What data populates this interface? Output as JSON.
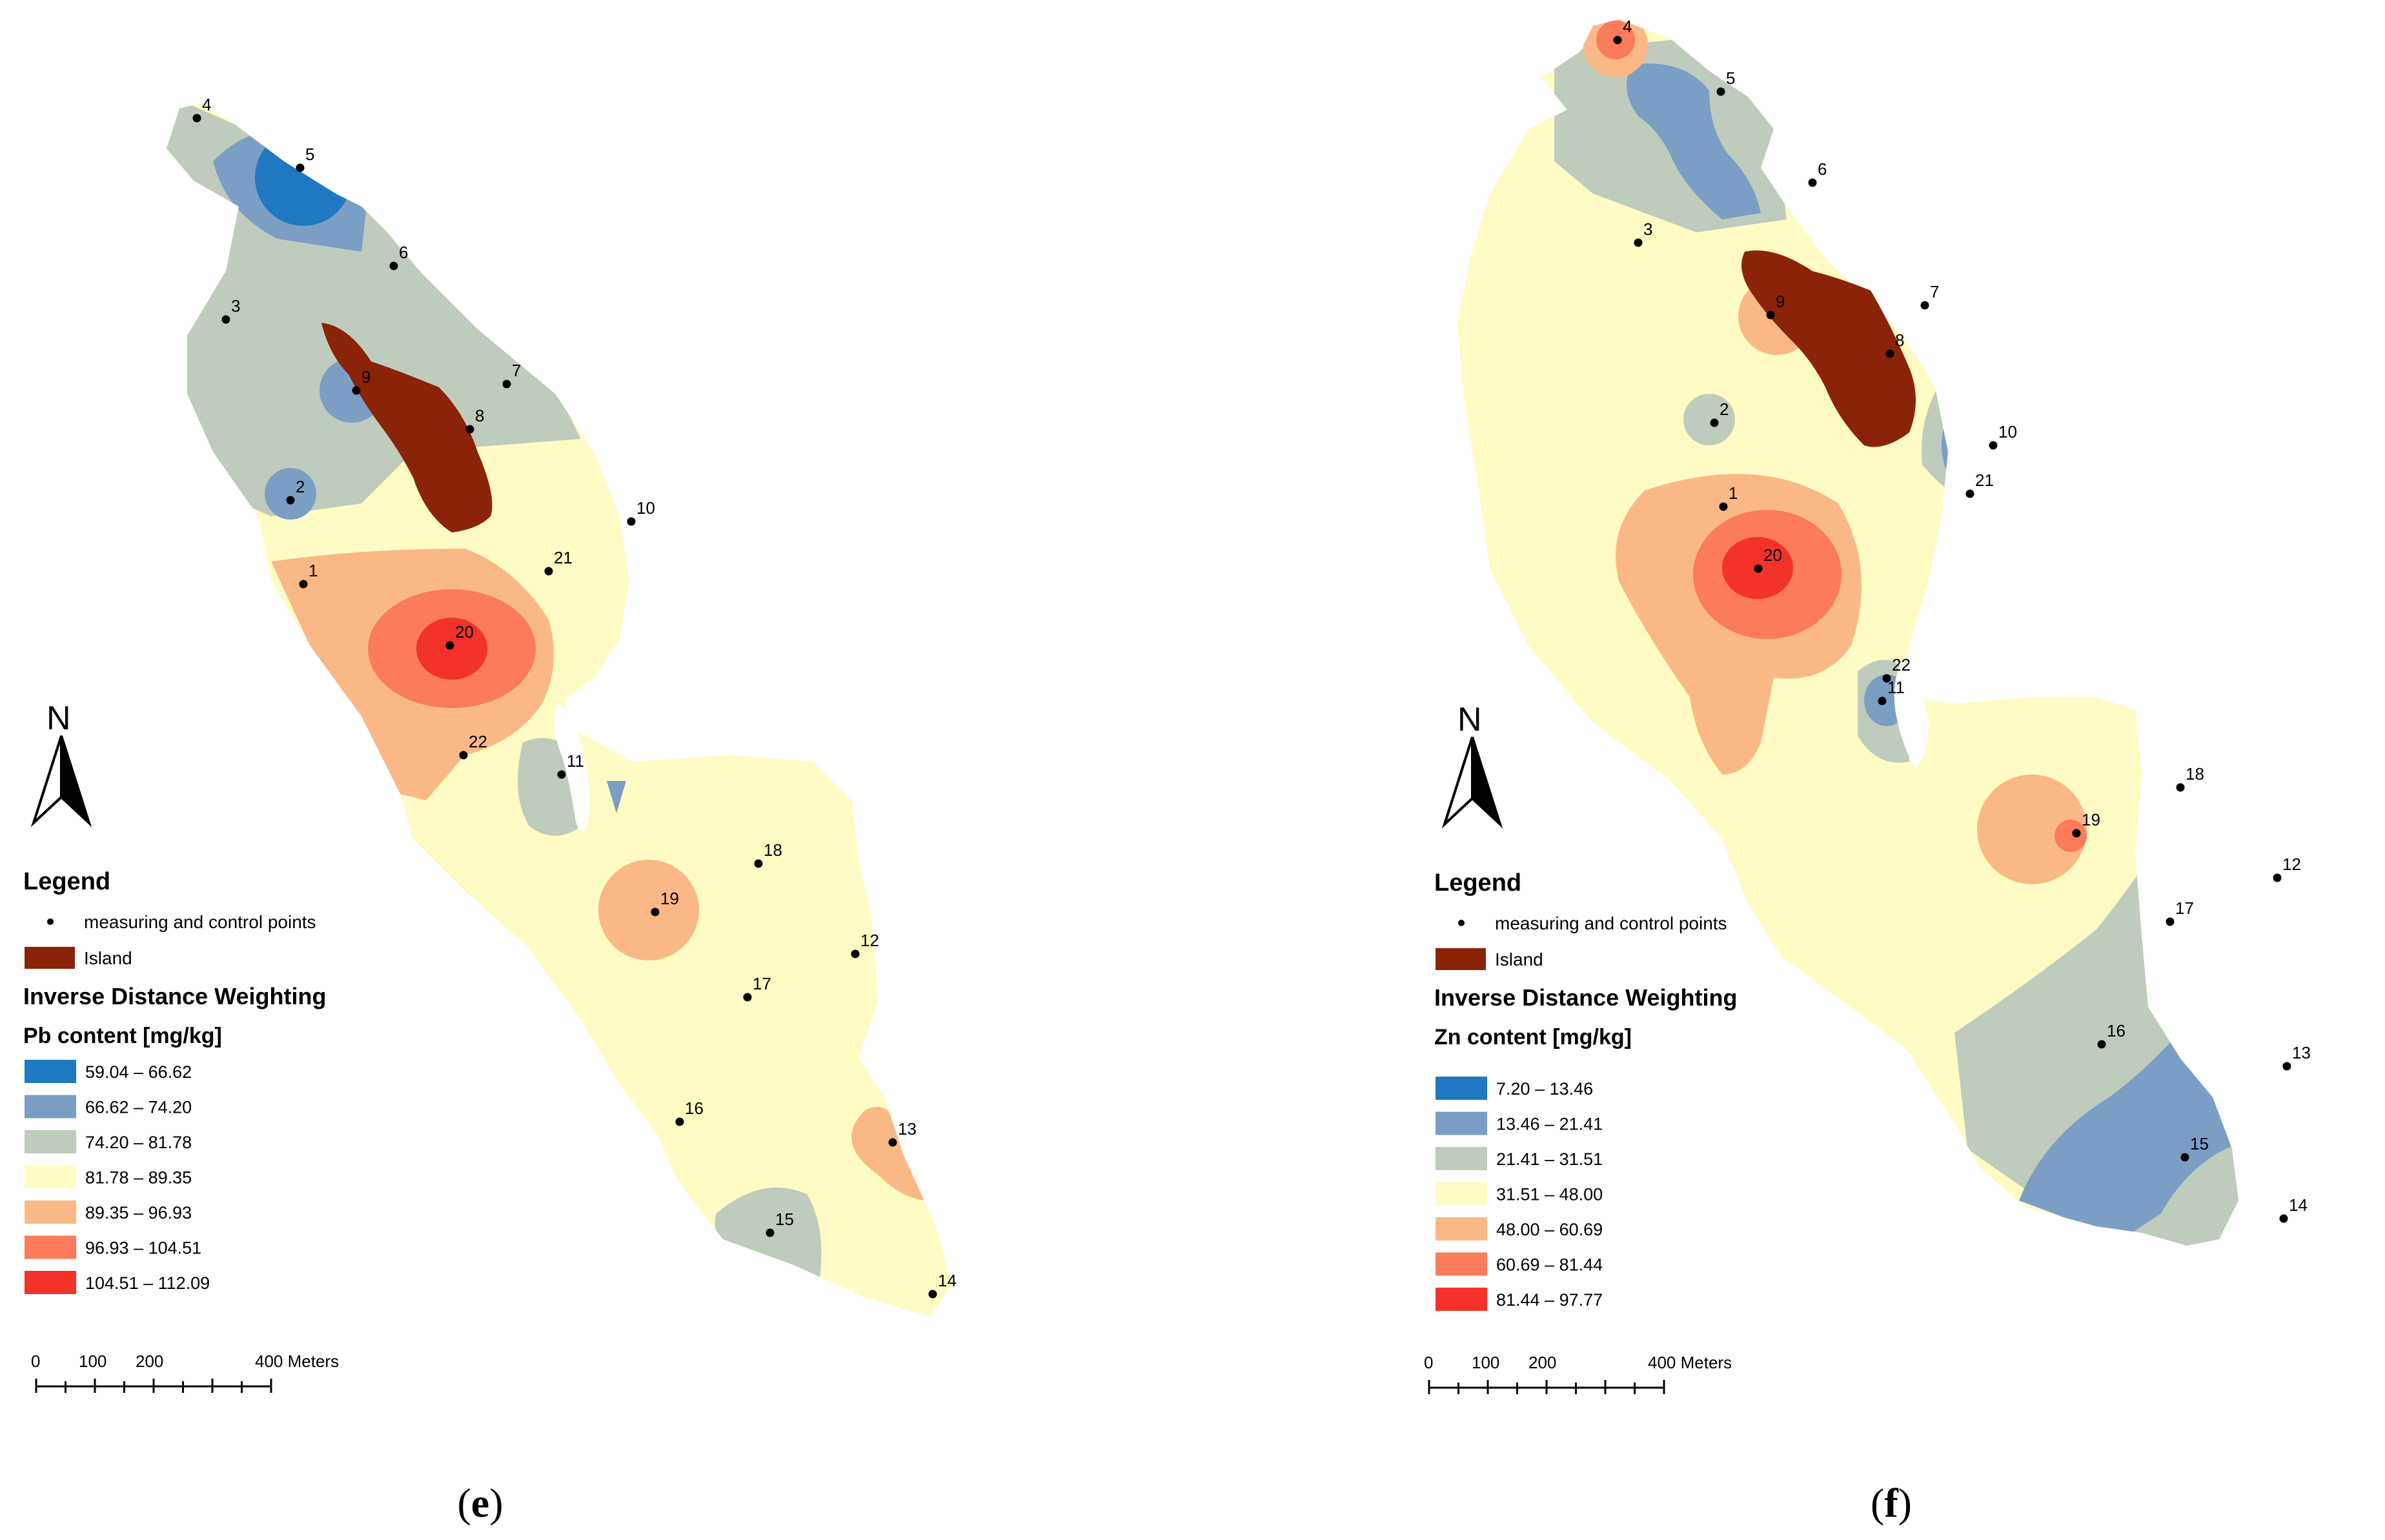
{
  "panels": [
    {
      "id": "e",
      "caption_open": "(",
      "caption_letter": "e",
      "caption_close": ")",
      "north": "N",
      "legend": {
        "title": "Legend",
        "points_label": "measuring and control points",
        "island_label": "Island",
        "method": "Inverse Distance Weighting",
        "variable": "Pb content [mg/kg]",
        "classes": [
          {
            "range": "59.04 – 66.62",
            "color": "#1f78c1"
          },
          {
            "range": "66.62 – 74.20",
            "color": "#7b9fc4"
          },
          {
            "range": "74.20 – 81.78",
            "color": "#bfcbbd"
          },
          {
            "range": "81.78 – 89.35",
            "color": "#fefcc4"
          },
          {
            "range": "89.35 – 96.93",
            "color": "#fbb887"
          },
          {
            "range": "96.93 – 104.51",
            "color": "#fb7b5b"
          },
          {
            "range": "104.51 – 112.09",
            "color": "#f3322a"
          }
        ]
      },
      "scale": {
        "t0": "0",
        "t1": "100",
        "t2": "200",
        "t3": "400 Meters"
      },
      "points": [
        "1",
        "2",
        "3",
        "4",
        "5",
        "6",
        "7",
        "8",
        "9",
        "10",
        "11",
        "12",
        "13",
        "14",
        "15",
        "16",
        "17",
        "18",
        "19",
        "20",
        "21",
        "22"
      ]
    },
    {
      "id": "f",
      "caption_open": "(",
      "caption_letter": "f",
      "caption_close": ")",
      "north": "N",
      "legend": {
        "title": "Legend",
        "points_label": "measuring and control points",
        "island_label": "Island",
        "method": "Inverse Distance Weighting",
        "variable": "Zn content [mg/kg]",
        "classes": [
          {
            "range": "7.20 – 13.46",
            "color": "#1f78c1"
          },
          {
            "range": "13.46 – 21.41",
            "color": "#7b9fc4"
          },
          {
            "range": "21.41 – 31.51",
            "color": "#bfcbbd"
          },
          {
            "range": "31.51 – 48.00",
            "color": "#fefcc4"
          },
          {
            "range": "48.00 – 60.69",
            "color": "#fbb887"
          },
          {
            "range": "60.69 – 81.44",
            "color": "#fb7b5b"
          },
          {
            "range": "81.44 – 97.77",
            "color": "#f3322a"
          }
        ]
      },
      "scale": {
        "t0": "0",
        "t1": "100",
        "t2": "200",
        "t3": "400 Meters"
      },
      "points": [
        "1",
        "2",
        "3",
        "4",
        "5",
        "6",
        "7",
        "8",
        "9",
        "10",
        "11",
        "12",
        "13",
        "14",
        "15",
        "16",
        "17",
        "18",
        "19",
        "20",
        "21",
        "22"
      ]
    }
  ],
  "colors": {
    "island": "#8b2309",
    "c1": "#1f78c1",
    "c2": "#7b9fc4",
    "c3": "#bfcbbd",
    "c4": "#fefcc4",
    "c5": "#fbb887",
    "c6": "#fb7b5b",
    "c7": "#f3322a"
  }
}
